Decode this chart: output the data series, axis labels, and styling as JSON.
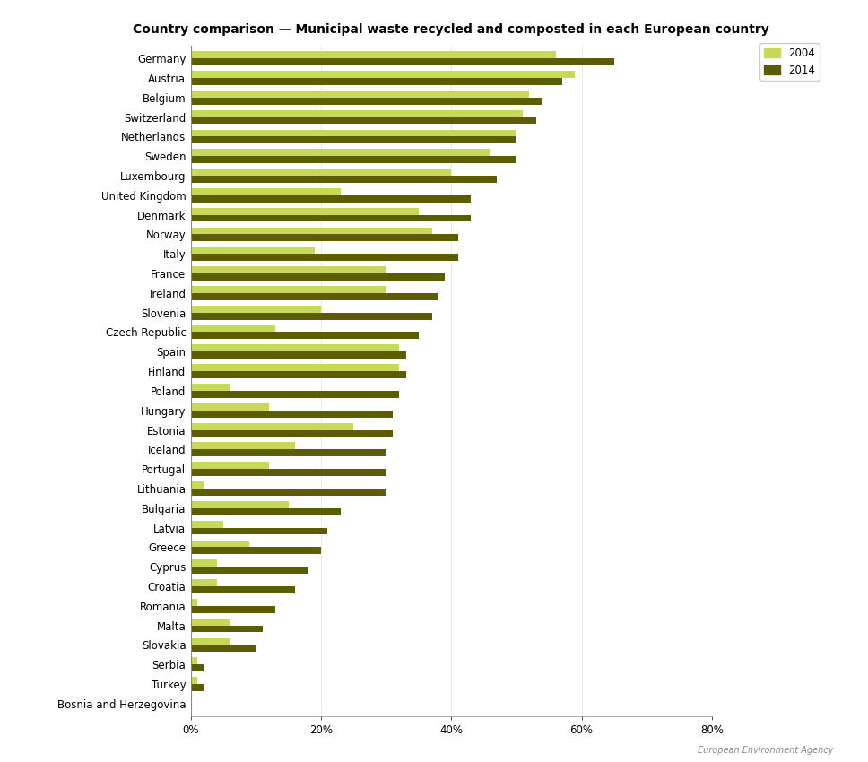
{
  "title": "Country comparison — Municipal waste recycled and composted in each European country",
  "countries": [
    "Germany",
    "Austria",
    "Belgium",
    "Switzerland",
    "Netherlands",
    "Sweden",
    "Luxembourg",
    "United Kingdom",
    "Denmark",
    "Norway",
    "Italy",
    "France",
    "Ireland",
    "Slovenia",
    "Czech Republic",
    "Spain",
    "Finland",
    "Poland",
    "Hungary",
    "Estonia",
    "Iceland",
    "Portugal",
    "Lithuania",
    "Bulgaria",
    "Latvia",
    "Greece",
    "Cyprus",
    "Croatia",
    "Romania",
    "Malta",
    "Slovakia",
    "Serbia",
    "Turkey",
    "Bosnia and Herzegovina"
  ],
  "values_2004": [
    56,
    59,
    52,
    51,
    50,
    46,
    40,
    23,
    35,
    37,
    19,
    30,
    30,
    20,
    13,
    32,
    32,
    6,
    12,
    25,
    16,
    12,
    2,
    15,
    5,
    9,
    4,
    4,
    1,
    6,
    6,
    1,
    1,
    0
  ],
  "values_2014": [
    65,
    57,
    54,
    53,
    50,
    50,
    47,
    43,
    43,
    41,
    41,
    39,
    38,
    37,
    35,
    33,
    33,
    32,
    31,
    31,
    30,
    30,
    30,
    23,
    21,
    20,
    18,
    16,
    13,
    11,
    10,
    2,
    2,
    0
  ],
  "color_2004": "#c8d85a",
  "color_2014": "#5c5c00",
  "background_color": "#ffffff",
  "xlim": [
    0,
    80
  ],
  "xticks": [
    0,
    20,
    40,
    60,
    80
  ],
  "xticklabels": [
    "0%",
    "20%",
    "40%",
    "60%",
    "80%"
  ],
  "legend_2004": "2004",
  "legend_2014": "2014",
  "title_fontsize": 10,
  "tick_fontsize": 8.5,
  "label_fontsize": 8.5
}
